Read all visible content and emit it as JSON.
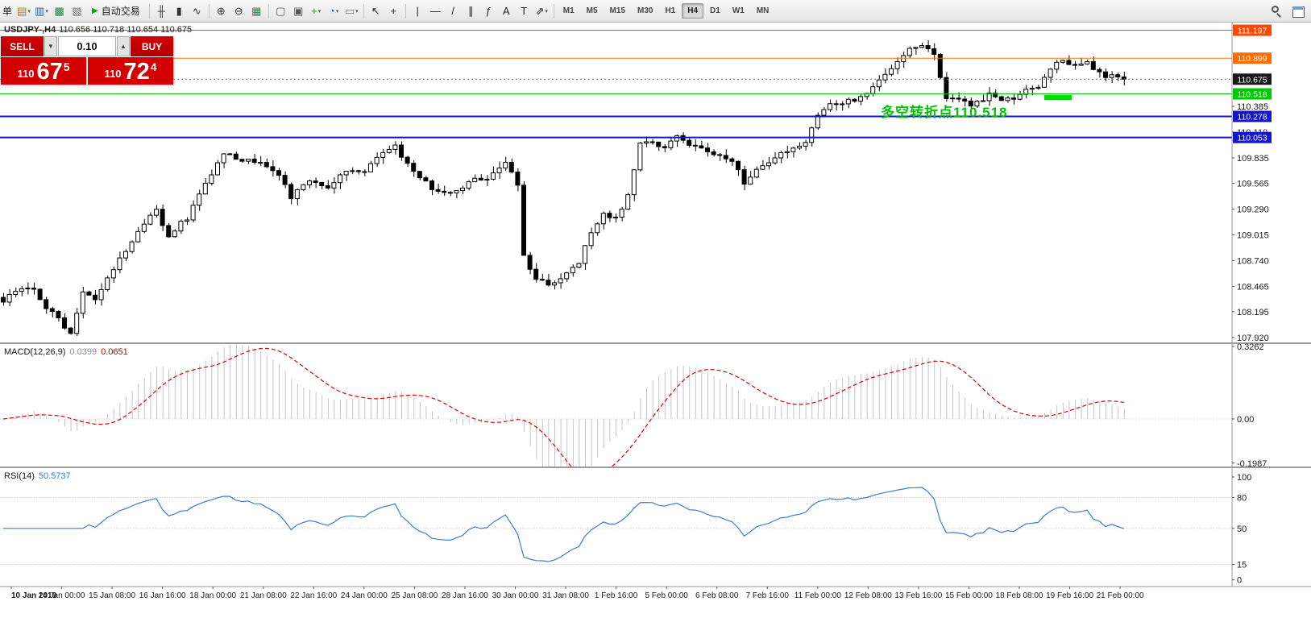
{
  "toolbar": {
    "order_label": "单",
    "auto_trading": {
      "label": "自动交易",
      "play_glyph": "▶"
    },
    "icons_left": [
      {
        "name": "new-chart-icon",
        "glyph": "▤",
        "color": "#c87800",
        "caret": true
      },
      {
        "name": "profiles-icon",
        "glyph": "▥",
        "color": "#2d5fa0",
        "caret": true
      },
      {
        "name": "market-watch-icon",
        "glyph": "▩",
        "color": "#1f8a4c"
      },
      {
        "name": "navigator-icon",
        "glyph": "▧",
        "color": "#777777"
      }
    ],
    "icons_chart": [
      {
        "name": "bar-chart-icon",
        "glyph": "╫",
        "color": "#333333"
      },
      {
        "name": "candlestick-chart-icon",
        "glyph": "▮",
        "color": "#333333"
      },
      {
        "name": "line-chart-icon",
        "glyph": "∿",
        "color": "#333333"
      }
    ],
    "icons_zoom": [
      {
        "name": "zoom-in-icon",
        "glyph": "⊕",
        "color": "#333333"
      },
      {
        "name": "zoom-out-icon",
        "glyph": "⊖",
        "color": "#333333"
      },
      {
        "name": "grid-icon",
        "glyph": "▦",
        "color": "#1f8a4c"
      }
    ],
    "icons_misc": [
      {
        "name": "tile-windows-icon",
        "glyph": "▢",
        "color": "#555555"
      },
      {
        "name": "cascade-windows-icon",
        "glyph": "▣",
        "color": "#555555"
      },
      {
        "name": "indicators-icon",
        "glyph": "+",
        "color": "#14a014",
        "caret": true
      },
      {
        "name": "periods-icon",
        "glyph": "◔",
        "color": "#3a6ea5",
        "caret": true
      },
      {
        "name": "templates-icon",
        "glyph": "▭",
        "color": "#777777",
        "caret": true
      }
    ],
    "icons_tools": [
      {
        "name": "cursor-icon",
        "glyph": "↖",
        "color": "#222222"
      },
      {
        "name": "crosshair-icon",
        "glyph": "+",
        "color": "#222222"
      }
    ],
    "icons_draw": [
      {
        "name": "vertical-line-icon",
        "glyph": "|",
        "color": "#222222"
      },
      {
        "name": "horizontal-line-icon",
        "glyph": "—",
        "color": "#222222"
      },
      {
        "name": "trendline-icon",
        "glyph": "/",
        "color": "#222222"
      },
      {
        "name": "channel-icon",
        "glyph": "∥",
        "color": "#222222"
      },
      {
        "name": "fibonacci-icon",
        "glyph": "ƒ",
        "color": "#222222"
      },
      {
        "name": "text-icon",
        "glyph": "A",
        "color": "#222222"
      },
      {
        "name": "label-icon",
        "glyph": "T",
        "color": "#222222"
      },
      {
        "name": "arrows-icon",
        "glyph": "⇗",
        "color": "#222222",
        "caret": true
      }
    ],
    "timeframes": [
      "M1",
      "M5",
      "M15",
      "M30",
      "H1",
      "H4",
      "D1",
      "W1",
      "MN"
    ],
    "active_timeframe": "H4"
  },
  "header": {
    "symbol": "USDJPY-,H4",
    "ohlc": "110.656 110.718 110.654 110.675"
  },
  "trade_panel": {
    "sell_label": "SELL",
    "buy_label": "BUY",
    "lot_size": "0.10",
    "spin_down_glyph": "▼",
    "spin_up_glyph": "▲",
    "sell_price": {
      "small": "110",
      "big": "67",
      "sup": "5"
    },
    "buy_price": {
      "small": "110",
      "big": "72",
      "sup": "4"
    }
  },
  "annotation": {
    "text": "多空转折点110.518",
    "color": "#00c400"
  },
  "chart_data": {
    "type": "candlestick",
    "symbol": "USDJPY-",
    "timeframe": "H4",
    "bars": 184,
    "price_axis": {
      "ylim": [
        107.867,
        111.279
      ],
      "ticks": [
        "110.385",
        "110.110",
        "109.835",
        "109.565",
        "109.290",
        "109.015",
        "108.740",
        "108.465",
        "108.195",
        "107.920"
      ]
    },
    "levels": [
      {
        "price": 111.197,
        "label": "111.197",
        "color": "#ff4902",
        "style": "solid",
        "width": 1
      },
      {
        "price": 110.899,
        "label": "110.899",
        "color": "#ff6d00",
        "style": "solid",
        "width": 1
      },
      {
        "price": 110.675,
        "label": "110.675",
        "color": "#6b6b6b",
        "style": "dot",
        "width": 1,
        "box": "#1a1a1a"
      },
      {
        "price": 110.518,
        "label": "110.518",
        "color": "#00c800",
        "style": "solid",
        "width": 1
      },
      {
        "price": 110.278,
        "label": "110.278",
        "color": "#1414c8",
        "style": "solid",
        "width": 2
      },
      {
        "price": 110.053,
        "label": "110.053",
        "color": "#1414c8",
        "style": "solid",
        "width": 2
      }
    ],
    "close_waypoints": [
      [
        0,
        108.3
      ],
      [
        2,
        108.42
      ],
      [
        5,
        108.45
      ],
      [
        7,
        108.25
      ],
      [
        11,
        107.98
      ],
      [
        13,
        108.4
      ],
      [
        15,
        108.35
      ],
      [
        19,
        108.75
      ],
      [
        22,
        109.05
      ],
      [
        25,
        109.28
      ],
      [
        27,
        109.0
      ],
      [
        30,
        109.2
      ],
      [
        33,
        109.55
      ],
      [
        36,
        109.9
      ],
      [
        39,
        109.82
      ],
      [
        42,
        109.78
      ],
      [
        45,
        109.65
      ],
      [
        47,
        109.42
      ],
      [
        50,
        109.6
      ],
      [
        53,
        109.52
      ],
      [
        56,
        109.72
      ],
      [
        59,
        109.68
      ],
      [
        61,
        109.85
      ],
      [
        64,
        109.95
      ],
      [
        67,
        109.7
      ],
      [
        70,
        109.52
      ],
      [
        73,
        109.45
      ],
      [
        76,
        109.58
      ],
      [
        79,
        109.62
      ],
      [
        82,
        109.78
      ],
      [
        84,
        109.55
      ],
      [
        85,
        108.78
      ],
      [
        87,
        108.55
      ],
      [
        89,
        108.48
      ],
      [
        92,
        108.62
      ],
      [
        94,
        108.72
      ],
      [
        96,
        109.05
      ],
      [
        98,
        109.25
      ],
      [
        100,
        109.18
      ],
      [
        102,
        109.42
      ],
      [
        104,
        110.0
      ],
      [
        106,
        110.02
      ],
      [
        108,
        109.92
      ],
      [
        110,
        110.08
      ],
      [
        113,
        109.95
      ],
      [
        116,
        109.88
      ],
      [
        119,
        109.82
      ],
      [
        121,
        109.58
      ],
      [
        123,
        109.7
      ],
      [
        126,
        109.85
      ],
      [
        129,
        109.92
      ],
      [
        131,
        110.02
      ],
      [
        133,
        110.28
      ],
      [
        135,
        110.4
      ],
      [
        138,
        110.44
      ],
      [
        141,
        110.5
      ],
      [
        144,
        110.72
      ],
      [
        146,
        110.88
      ],
      [
        148,
        111.0
      ],
      [
        150,
        111.05
      ],
      [
        152,
        110.92
      ],
      [
        154,
        110.48
      ],
      [
        156,
        110.44
      ],
      [
        158,
        110.4
      ],
      [
        161,
        110.5
      ],
      [
        164,
        110.46
      ],
      [
        167,
        110.54
      ],
      [
        169,
        110.6
      ],
      [
        171,
        110.8
      ],
      [
        173,
        110.9
      ],
      [
        175,
        110.8
      ],
      [
        177,
        110.85
      ],
      [
        179,
        110.74
      ],
      [
        181,
        110.7
      ],
      [
        183,
        110.675
      ]
    ],
    "candle_colors": {
      "bull_fill": "#ffffff",
      "bear_fill": "#000000",
      "outline": "#000000"
    },
    "highlight_rect": {
      "bar_start": 170,
      "bar_end": 174.5,
      "price_top": 110.505,
      "price_bottom": 110.452,
      "color": "#00dc00"
    },
    "macd": {
      "label": "MACD(12,26,9)",
      "value_main": "0.0399",
      "value_signal": "0.0651",
      "params": [
        12,
        26,
        9
      ],
      "ylim": [
        -0.214,
        0.337
      ],
      "axis_ticks": [
        "0.3262",
        "0.00",
        "-0.1987"
      ],
      "hist_color": "#c4c4c4",
      "signal_color": "#e00000"
    },
    "rsi": {
      "label": "RSI(14)",
      "value": "50.5737",
      "period": 14,
      "ylim": [
        -6.5,
        108.6
      ],
      "axis_ticks": [
        "100",
        "80",
        "50",
        "15",
        "0"
      ],
      "levels": [
        80,
        50,
        15
      ],
      "line_color": "#3c7bd9"
    },
    "time_axis": [
      "10 Jan 2019",
      "14 Jan 00:00",
      "15 Jan 08:00",
      "16 Jan 16:00",
      "18 Jan 00:00",
      "21 Jan 08:00",
      "22 Jan 16:00",
      "24 Jan 00:00",
      "25 Jan 08:00",
      "28 Jan 16:00",
      "30 Jan 00:00",
      "31 Jan 08:00",
      "1 Feb 16:00",
      "5 Feb 00:00",
      "6 Feb 08:00",
      "7 Feb 16:00",
      "11 Feb 00:00",
      "12 Feb 08:00",
      "13 Feb 16:00",
      "15 Feb 00:00",
      "18 Feb 08:00",
      "19 Feb 16:00",
      "21 Feb 00:00"
    ]
  }
}
